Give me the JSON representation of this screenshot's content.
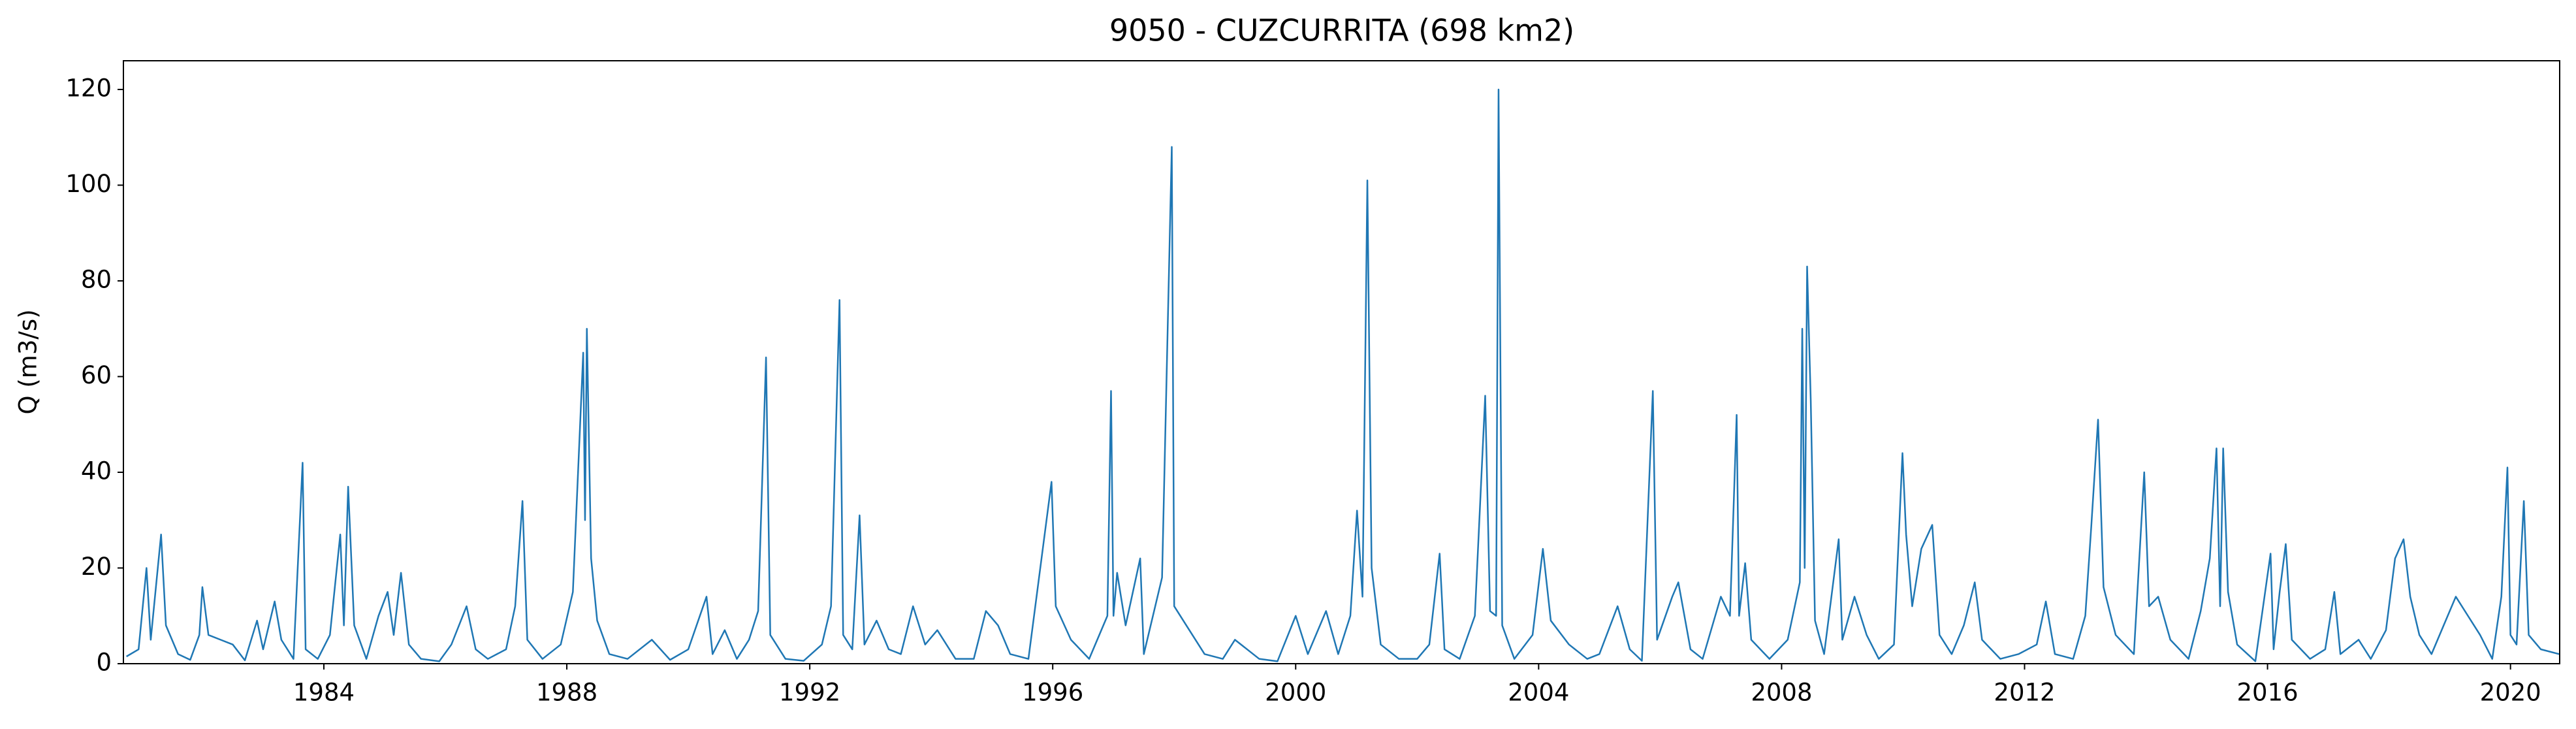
{
  "chart_data": {
    "type": "line",
    "title": "9050 - CUZCURRITA (698 km2)",
    "y_label": "Q (m3/s)",
    "x": [
      1980.75,
      1980.95,
      1981.08,
      1981.15,
      1981.32,
      1981.4,
      1981.6,
      1981.8,
      1981.95,
      1982.0,
      1982.1,
      1982.3,
      1982.5,
      1982.7,
      1982.9,
      1983.0,
      1983.19,
      1983.3,
      1983.5,
      1983.65,
      1983.7,
      1983.9,
      1984.1,
      1984.27,
      1984.33,
      1984.4,
      1984.5,
      1984.7,
      1984.9,
      1985.05,
      1985.15,
      1985.27,
      1985.4,
      1985.6,
      1985.9,
      1986.1,
      1986.35,
      1986.5,
      1986.7,
      1987.0,
      1987.15,
      1987.27,
      1987.35,
      1987.6,
      1987.9,
      1988.1,
      1988.27,
      1988.3,
      1988.33,
      1988.4,
      1988.5,
      1988.7,
      1989.0,
      1989.4,
      1989.7,
      1990.0,
      1990.3,
      1990.4,
      1990.6,
      1990.8,
      1991.0,
      1991.15,
      1991.28,
      1991.35,
      1991.6,
      1991.9,
      1992.2,
      1992.35,
      1992.49,
      1992.55,
      1992.7,
      1992.82,
      1992.9,
      1993.1,
      1993.3,
      1993.5,
      1993.7,
      1993.9,
      1994.1,
      1994.4,
      1994.7,
      1994.9,
      1995.1,
      1995.3,
      1995.6,
      1995.98,
      1996.05,
      1996.3,
      1996.6,
      1996.9,
      1996.96,
      1997.0,
      1997.06,
      1997.2,
      1997.44,
      1997.5,
      1997.8,
      1997.96,
      1998.0,
      1998.2,
      1998.5,
      1998.8,
      1999.0,
      1999.4,
      1999.7,
      2000.0,
      2000.2,
      2000.5,
      2000.7,
      2000.9,
      2001.01,
      2001.1,
      2001.18,
      2001.25,
      2001.4,
      2001.7,
      2002.0,
      2002.2,
      2002.37,
      2002.45,
      2002.7,
      2002.95,
      2003.12,
      2003.2,
      2003.3,
      2003.34,
      2003.4,
      2003.6,
      2003.9,
      2004.07,
      2004.2,
      2004.5,
      2004.8,
      2005.0,
      2005.3,
      2005.5,
      2005.7,
      2005.88,
      2005.95,
      2006.2,
      2006.3,
      2006.5,
      2006.7,
      2007.0,
      2007.15,
      2007.26,
      2007.3,
      2007.4,
      2007.5,
      2007.8,
      2008.1,
      2008.3,
      2008.34,
      2008.38,
      2008.42,
      2008.48,
      2008.55,
      2008.7,
      2008.94,
      2009.0,
      2009.2,
      2009.4,
      2009.6,
      2009.85,
      2009.99,
      2010.05,
      2010.15,
      2010.3,
      2010.48,
      2010.6,
      2010.8,
      2011.0,
      2011.18,
      2011.3,
      2011.6,
      2011.9,
      2012.2,
      2012.35,
      2012.5,
      2012.8,
      2013.0,
      2013.1,
      2013.21,
      2013.3,
      2013.5,
      2013.8,
      2013.97,
      2014.05,
      2014.2,
      2014.4,
      2014.7,
      2014.9,
      2015.05,
      2015.16,
      2015.22,
      2015.27,
      2015.35,
      2015.5,
      2015.8,
      2016.05,
      2016.1,
      2016.2,
      2016.3,
      2016.4,
      2016.7,
      2016.95,
      2017.1,
      2017.2,
      2017.5,
      2017.7,
      2017.95,
      2018.1,
      2018.24,
      2018.35,
      2018.5,
      2018.7,
      2018.9,
      2019.1,
      2019.3,
      2019.5,
      2019.7,
      2019.85,
      2019.95,
      2020.0,
      2020.1,
      2020.22,
      2020.3,
      2020.5,
      2020.8
    ],
    "series": [
      {
        "name": "Q",
        "color": "#1f77b4",
        "values": [
          1.5,
          3,
          20,
          5,
          27,
          8,
          2,
          0.8,
          6,
          16,
          6,
          5,
          4,
          0.7,
          9,
          3,
          13,
          5,
          1,
          42,
          3,
          1,
          6,
          27,
          8,
          37,
          8,
          1,
          10,
          15,
          6,
          19,
          4,
          1,
          0.5,
          4,
          12,
          3,
          1,
          3,
          12,
          34,
          5,
          1,
          4,
          15,
          65,
          30,
          70,
          22,
          9,
          2,
          1,
          5,
          0.8,
          3,
          14,
          2,
          7,
          1,
          5,
          11,
          64,
          6,
          1,
          0.6,
          4,
          12,
          76,
          6,
          3,
          31,
          4,
          9,
          3,
          2,
          12,
          4,
          7,
          1,
          1,
          11,
          8,
          2,
          1,
          38,
          12,
          5,
          1,
          10,
          57,
          10,
          19,
          8,
          22,
          2,
          18,
          108,
          12,
          8,
          2,
          1,
          5,
          1,
          0.5,
          10,
          2,
          11,
          2,
          10,
          32,
          14,
          101,
          20,
          4,
          1,
          1,
          4,
          23,
          3,
          1,
          10,
          56,
          11,
          10,
          120,
          8,
          1,
          6,
          24,
          9,
          4,
          1,
          2,
          12,
          3,
          0.6,
          57,
          5,
          14,
          17,
          3,
          1,
          14,
          10,
          52,
          10,
          21,
          5,
          1,
          5,
          17,
          70,
          20,
          83,
          55,
          9,
          2,
          26,
          5,
          14,
          6,
          1,
          4,
          44,
          27,
          12,
          24,
          29,
          6,
          2,
          8,
          17,
          5,
          1,
          2,
          4,
          13,
          2,
          1,
          10,
          29,
          51,
          16,
          6,
          2,
          40,
          12,
          14,
          5,
          1,
          11,
          22,
          45,
          12,
          45,
          15,
          4,
          0.5,
          23,
          3,
          15,
          25,
          5,
          1,
          3,
          15,
          2,
          5,
          1,
          7,
          22,
          26,
          14,
          6,
          2,
          8,
          14,
          10,
          6,
          1,
          14,
          41,
          6,
          4,
          34,
          6,
          3,
          2
        ]
      }
    ],
    "xlim": [
      1980.7,
      2020.81
    ],
    "ylim": [
      0,
      126
    ],
    "xticks": [
      1984,
      1988,
      1992,
      1996,
      2000,
      2004,
      2008,
      2012,
      2016,
      2020
    ],
    "yticks": [
      0,
      20,
      40,
      60,
      80,
      100,
      120
    ]
  }
}
